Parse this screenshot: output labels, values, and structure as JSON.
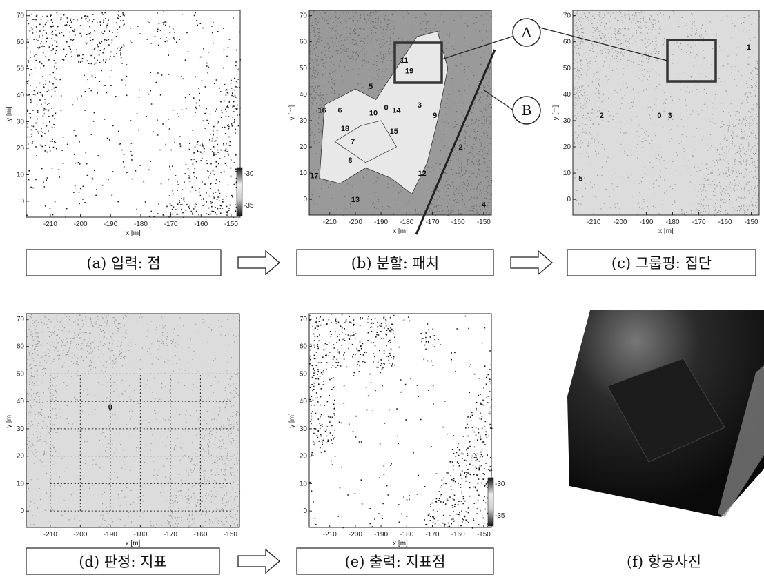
{
  "figure": {
    "panels": [
      {
        "caption": "(a) 입력: 점",
        "xlabel": "x [m]",
        "ylabel": "y [m]",
        "xticks": [
          "-210",
          "-200",
          "-190",
          "-180",
          "-170",
          "-160",
          "-150"
        ],
        "yticks": [
          "0",
          "10",
          "20",
          "30",
          "40",
          "50",
          "60",
          "70"
        ],
        "colorbar": [
          "-30",
          "-35"
        ]
      },
      {
        "caption": "(b) 분할: 패치",
        "xlabel": "x [m]",
        "ylabel": "y [m]",
        "xticks": [
          "-210",
          "-200",
          "-190",
          "-180",
          "-170",
          "-160",
          "-150"
        ],
        "yticks": [
          "0",
          "10",
          "20",
          "30",
          "40",
          "50",
          "60",
          "70"
        ],
        "labels": [
          "11",
          "19",
          "5",
          "16",
          "6",
          "10",
          "0",
          "14",
          "3",
          "9",
          "18",
          "15",
          "7",
          "8",
          "2",
          "17",
          "12",
          "13",
          "4"
        ]
      },
      {
        "caption": "(c) 그룹핑: 집단",
        "xlabel": "x [m]",
        "ylabel": "y [m]",
        "xticks": [
          "-210",
          "-200",
          "-190",
          "-180",
          "-170",
          "-160",
          "-150"
        ],
        "yticks": [
          "0",
          "10",
          "20",
          "30",
          "40",
          "50",
          "60",
          "70"
        ],
        "labels": [
          "1",
          "2",
          "0",
          "3",
          "5"
        ]
      },
      {
        "caption": "(d) 판정: 지표",
        "xlabel": "x [m]",
        "ylabel": "y [m]",
        "xticks": [
          "-210",
          "-200",
          "-190",
          "-180",
          "-170",
          "-160",
          "-150"
        ],
        "yticks": [
          "0",
          "10",
          "20",
          "30",
          "40",
          "50",
          "60",
          "70"
        ],
        "labels": [
          "0"
        ]
      },
      {
        "caption": "(e) 출력: 지표점",
        "xlabel": "x [m]",
        "ylabel": "y [m]",
        "xticks": [
          "-210",
          "-200",
          "-190",
          "-180",
          "-170",
          "-160",
          "-150"
        ],
        "yticks": [
          "0",
          "10",
          "20",
          "30",
          "40",
          "50",
          "60",
          "70"
        ],
        "colorbar": [
          "-30",
          "-35"
        ]
      },
      {
        "caption": "(f) 항공사진"
      }
    ],
    "callouts": [
      "A",
      "B"
    ]
  }
}
